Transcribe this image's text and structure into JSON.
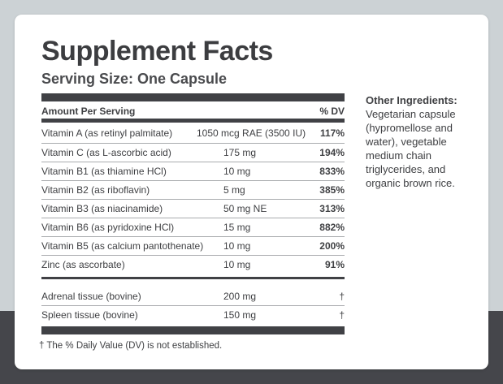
{
  "title": "Supplement Facts",
  "serving_size": "Serving Size: One Capsule",
  "table": {
    "header_left": "Amount Per Serving",
    "header_right": "% DV",
    "vitamins": [
      {
        "name": "Vitamin A (as retinyl palmitate)",
        "amount": "1050 mcg RAE (3500 IU)",
        "dv": "117%"
      },
      {
        "name": "Vitamin C (as L-ascorbic acid)",
        "amount": "175 mg",
        "dv": "194%"
      },
      {
        "name": "Vitamin B1 (as thiamine HCl)",
        "amount": "10 mg",
        "dv": "833%"
      },
      {
        "name": "Vitamin B2 (as riboflavin)",
        "amount": "5 mg",
        "dv": "385%"
      },
      {
        "name": "Vitamin B3 (as niacinamide)",
        "amount": "50 mg NE",
        "dv": "313%"
      },
      {
        "name": "Vitamin B6 (as pyridoxine HCl)",
        "amount": "15 mg",
        "dv": "882%"
      },
      {
        "name": "Vitamin B5 (as calcium pantothenate)",
        "amount": "10 mg",
        "dv": "200%"
      },
      {
        "name": "Zinc (as ascorbate)",
        "amount": "10 mg",
        "dv": "91%"
      }
    ],
    "tissues": [
      {
        "name": "Adrenal tissue (bovine)",
        "amount": "200 mg",
        "dv": "†"
      },
      {
        "name": "Spleen tissue (bovine)",
        "amount": "150 mg",
        "dv": "†"
      }
    ]
  },
  "footnote": "† The % Daily Value (DV) is not established.",
  "other_ingredients": {
    "heading": "Other Ingredients:",
    "text": "Vegetarian capsule (hypromellose and water), vegetable medium chain triglycerides, and organic brown rice."
  }
}
